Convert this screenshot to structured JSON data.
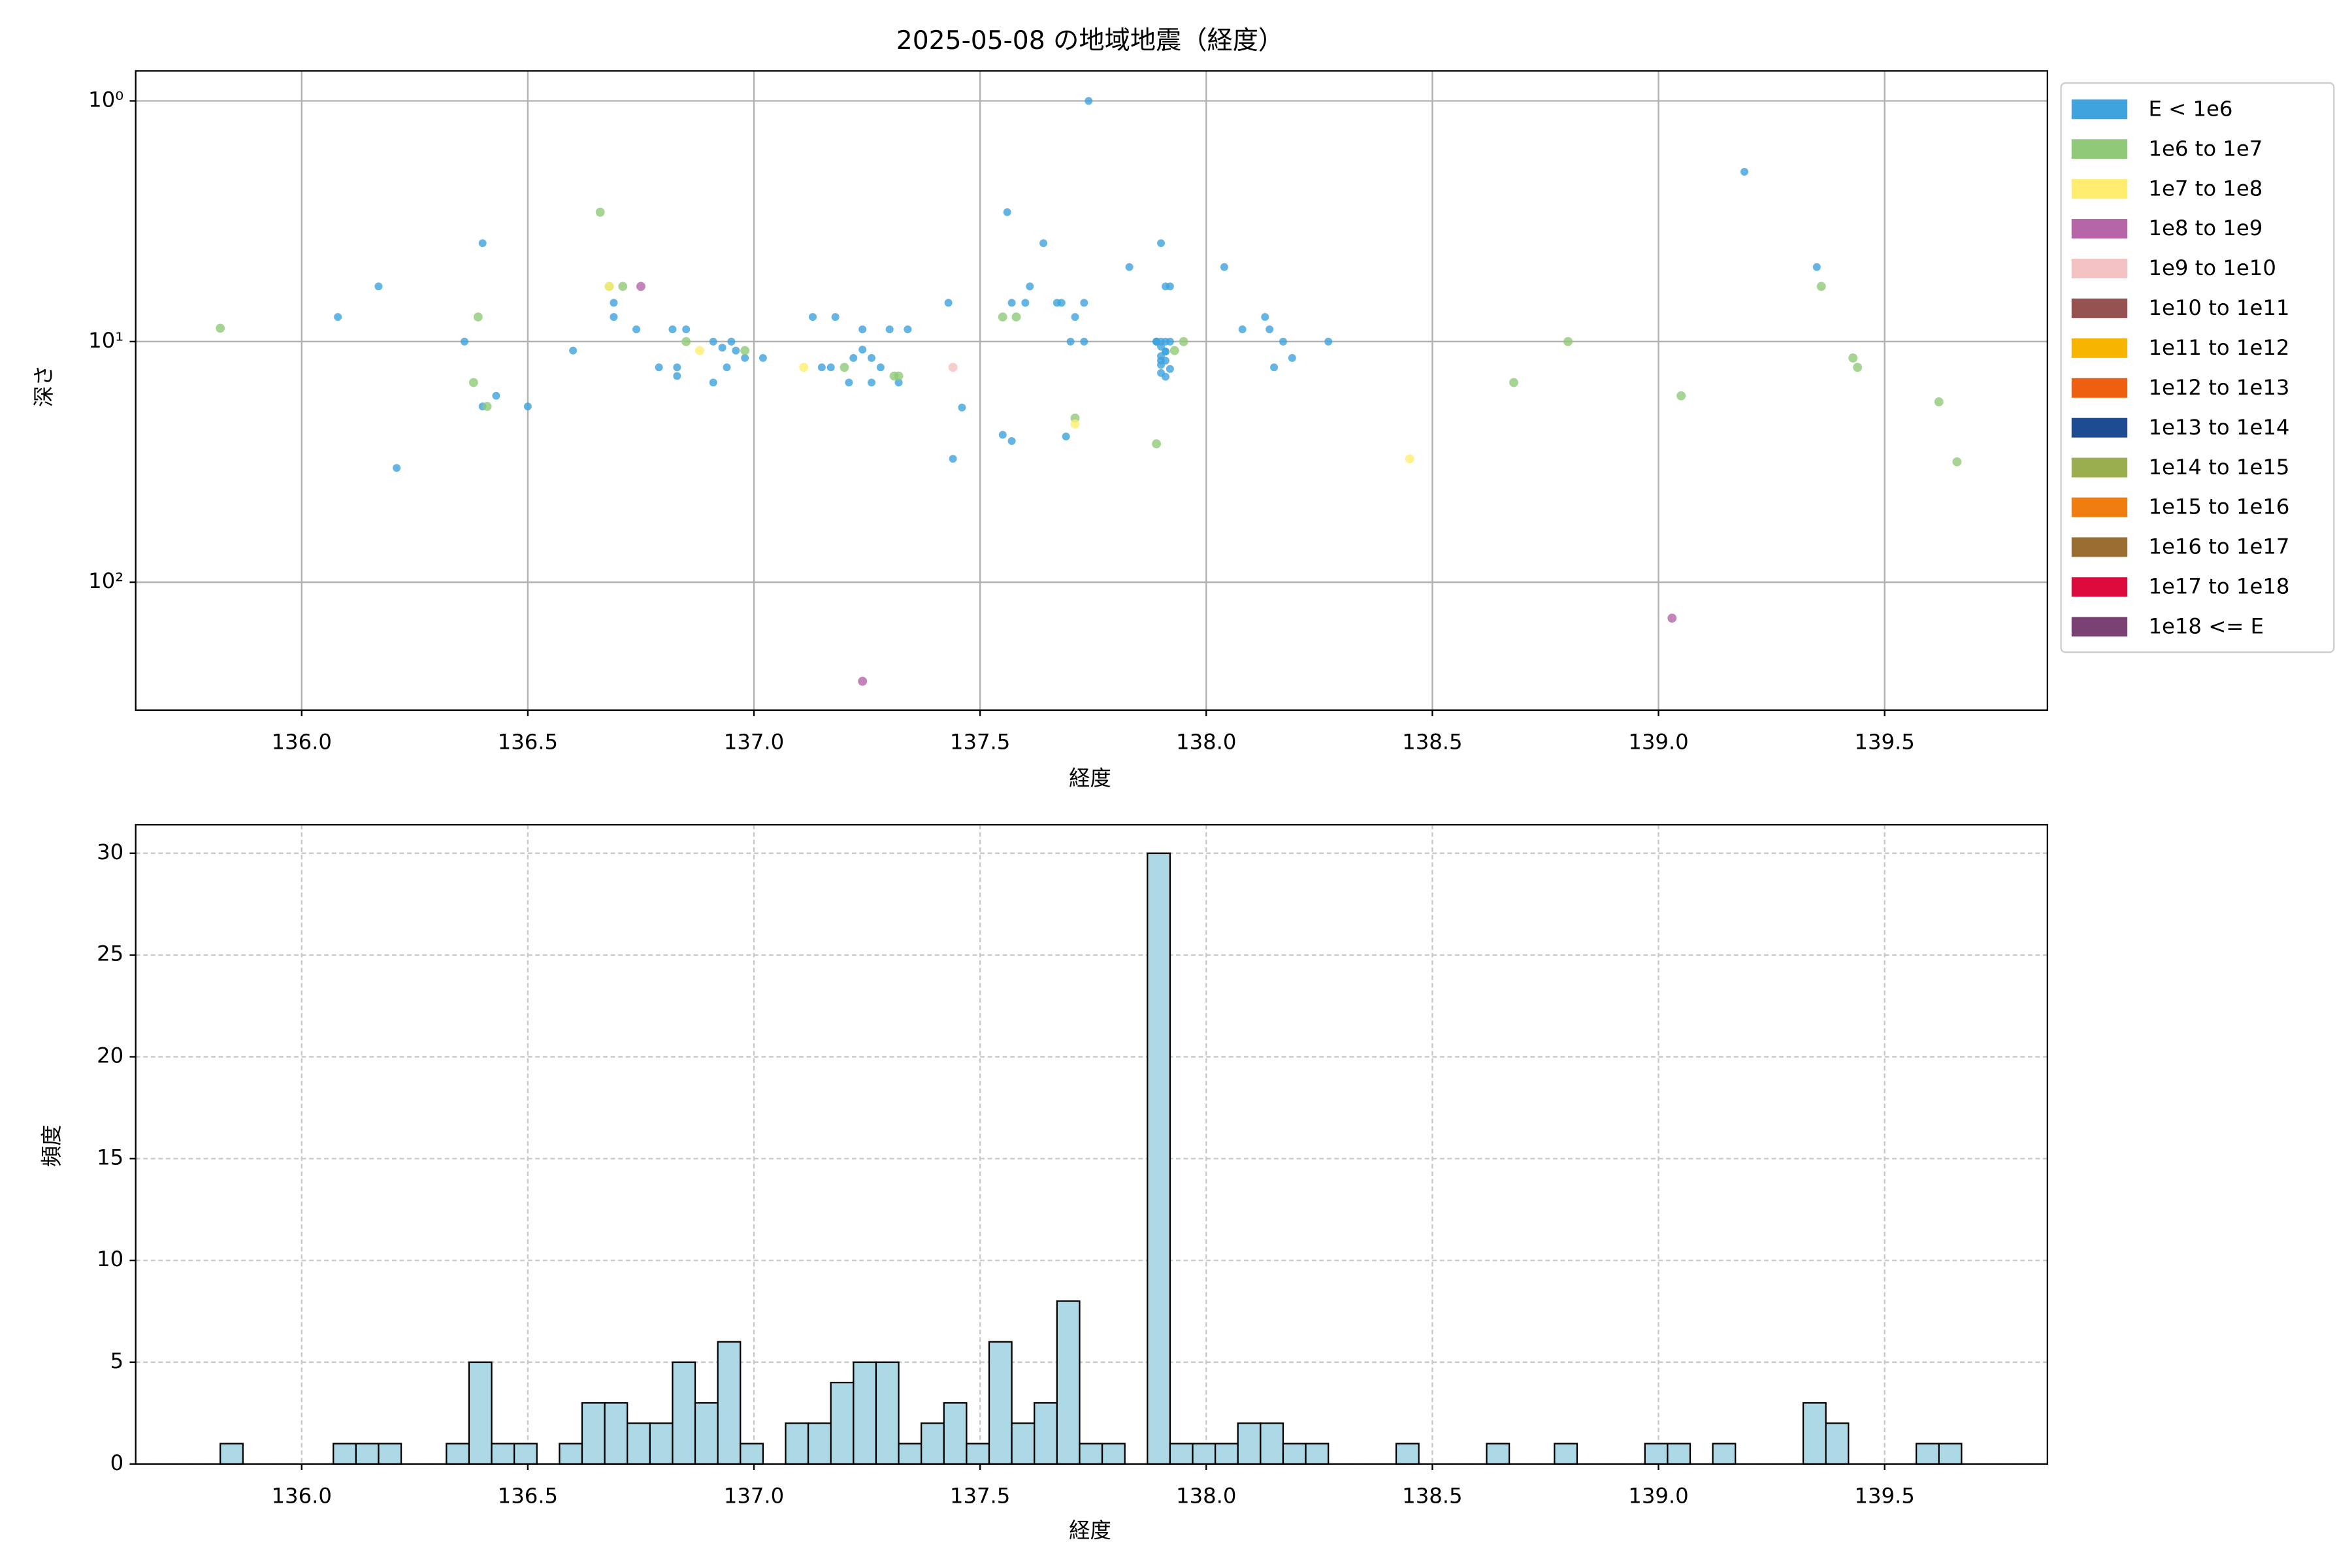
{
  "chart_data": [
    {
      "type": "scatter",
      "title": "2025-05-08 の地域地震（経度）",
      "xlabel": "経度",
      "ylabel": "深さ",
      "xlim": [
        135.633,
        139.86
      ],
      "ylim": [
        0.75,
        340
      ],
      "log_y": true,
      "y_inverted": true,
      "grid": true,
      "legend": "outside upper right",
      "xticks": [
        {
          "value": 136,
          "label": "136.0"
        },
        {
          "value": 136.5,
          "label": "136.5"
        },
        {
          "value": 137,
          "label": "137.0"
        },
        {
          "value": 137.5,
          "label": "137.5"
        },
        {
          "value": 138,
          "label": "138.0"
        },
        {
          "value": 138.5,
          "label": "138.5"
        },
        {
          "value": 139,
          "label": "139.0"
        },
        {
          "value": 139.5,
          "label": "139.5"
        }
      ],
      "yticks": [
        {
          "value": 1,
          "label": "10⁰"
        },
        {
          "value": 10,
          "label": "10¹"
        },
        {
          "value": 100,
          "label": "10²"
        }
      ],
      "series": [
        {
          "name": "E < 1e6",
          "color": "#3fa3dd",
          "x": [
            136.08,
            136.17,
            136.21,
            136.36,
            136.4,
            136.4,
            136.43,
            136.5,
            136.6,
            136.69,
            136.69,
            136.74,
            136.79,
            136.82,
            136.83,
            136.83,
            136.85,
            136.91,
            136.91,
            136.93,
            136.94,
            136.95,
            136.96,
            136.98,
            137.02,
            137.13,
            137.15,
            137.17,
            137.18,
            137.21,
            137.22,
            137.24,
            137.24,
            137.26,
            137.26,
            137.28,
            137.3,
            137.32,
            137.34,
            137.43,
            137.44,
            137.46,
            137.55,
            137.56,
            137.57,
            137.57,
            137.6,
            137.61,
            137.64,
            137.67,
            137.68,
            137.69,
            137.7,
            137.71,
            137.73,
            137.73,
            137.74,
            137.83,
            137.9,
            137.91,
            137.92,
            137.89,
            137.9,
            137.9,
            137.91,
            137.91,
            137.92,
            137.9,
            137.89,
            137.91,
            137.9,
            137.92,
            137.91,
            137.9,
            137.89,
            137.91,
            137.9,
            138.04,
            138.08,
            138.13,
            138.14,
            138.15,
            138.17,
            138.19,
            138.27,
            139.19,
            139.35
          ],
          "values": [
            7.9,
            5.9,
            33.5,
            10,
            3.9,
            18.6,
            16.8,
            18.6,
            10.9,
            7.9,
            6.9,
            8.9,
            12.8,
            8.9,
            12.8,
            13.9,
            8.9,
            14.8,
            10,
            10.6,
            12.8,
            10,
            10.9,
            11.7,
            11.7,
            7.9,
            12.8,
            12.8,
            7.9,
            14.8,
            11.7,
            8.9,
            10.8,
            11.7,
            14.8,
            12.8,
            8.9,
            14.8,
            8.9,
            6.9,
            30.7,
            18.8,
            24.4,
            2.9,
            25.9,
            6.9,
            6.9,
            5.9,
            3.9,
            6.9,
            6.9,
            24.8,
            10,
            7.9,
            6.9,
            10,
            1,
            4.9,
            3.9,
            5.9,
            5.9,
            10,
            10,
            10.5,
            11,
            12,
            13,
            11.5,
            10,
            10,
            12.5,
            10,
            11,
            13.5,
            10,
            14,
            12,
            4.9,
            8.9,
            7.9,
            8.9,
            12.8,
            10,
            11.7,
            10,
            1.97,
            4.9
          ]
        },
        {
          "name": "1e6 to 1e7",
          "color": "#90c978",
          "x": [
            135.82,
            136.38,
            136.39,
            136.41,
            136.66,
            136.68,
            136.71,
            136.85,
            136.98,
            137.2,
            137.31,
            137.32,
            137.55,
            137.58,
            137.71,
            137.89,
            137.93,
            137.95,
            138.68,
            138.8,
            139.05,
            139.36,
            139.43,
            139.44,
            139.62,
            139.66
          ],
          "values": [
            8.8,
            14.8,
            7.9,
            18.6,
            2.9,
            5.9,
            5.9,
            10,
            10.9,
            12.8,
            13.9,
            13.9,
            7.9,
            7.9,
            20.8,
            26.6,
            10.9,
            10,
            14.8,
            10,
            16.8,
            5.9,
            11.7,
            12.8,
            17.8,
            31.6
          ]
        },
        {
          "name": "1e7 to 1e8",
          "color": "#ffed6f",
          "x": [
            136.68,
            136.88,
            137.11,
            137.71,
            138.45
          ],
          "values": [
            5.9,
            10.9,
            12.8,
            22,
            30.7
          ]
        },
        {
          "name": "1e8 to 1e9",
          "color": "#b565a7",
          "x": [
            136.75,
            137.24,
            139.03
          ],
          "values": [
            5.9,
            258,
            141
          ]
        },
        {
          "name": "1e9 to 1e10",
          "color": "#f4c2c2",
          "x": [
            137.44
          ],
          "values": [
            12.8
          ]
        },
        {
          "name": "1e10 to 1e11",
          "color": "#955251",
          "x": [],
          "values": []
        },
        {
          "name": "1e11 to 1e12",
          "color": "#f7b500",
          "x": [],
          "values": []
        },
        {
          "name": "1e12 to 1e13",
          "color": "#ee6010",
          "x": [],
          "values": []
        },
        {
          "name": "1e13 to 1e14",
          "color": "#1e4c92",
          "x": [],
          "values": []
        },
        {
          "name": "1e14 to 1e15",
          "color": "#9aad4f",
          "x": [],
          "values": []
        },
        {
          "name": "1e15 to 1e16",
          "color": "#ef7d10",
          "x": [],
          "values": []
        },
        {
          "name": "1e16 to 1e17",
          "color": "#9a6e30",
          "x": [],
          "values": []
        },
        {
          "name": "1e17 to 1e18",
          "color": "#dc0a3c",
          "x": [],
          "values": []
        },
        {
          "name": "1e18 <= E",
          "color": "#7b4173",
          "x": [],
          "values": []
        }
      ]
    },
    {
      "type": "histogram",
      "xlabel": "経度",
      "ylabel": "頻度",
      "color": "#add8e6",
      "edgecolor": "#000000",
      "grid": "dashed",
      "xlim": [
        135.633,
        139.86
      ],
      "ylim": [
        0,
        31.4
      ],
      "xticks": [
        {
          "value": 136,
          "label": "136.0"
        },
        {
          "value": 136.5,
          "label": "136.5"
        },
        {
          "value": 137,
          "label": "137.0"
        },
        {
          "value": 137.5,
          "label": "137.5"
        },
        {
          "value": 138,
          "label": "138.0"
        },
        {
          "value": 138.5,
          "label": "138.5"
        },
        {
          "value": 139,
          "label": "139.0"
        },
        {
          "value": 139.5,
          "label": "139.5"
        }
      ],
      "yticks": [
        0,
        5,
        10,
        15,
        20,
        25,
        30
      ],
      "bins": [
        135.82,
        135.87,
        135.92,
        135.97,
        136.02,
        136.07,
        136.12,
        136.17,
        136.22,
        136.27,
        136.32,
        136.37,
        136.42,
        136.47,
        136.52,
        136.57,
        136.62,
        136.67,
        136.72,
        136.77,
        136.82,
        136.87,
        136.92,
        136.97,
        137.02,
        137.07,
        137.12,
        137.17,
        137.22,
        137.27,
        137.32,
        137.37,
        137.42,
        137.47,
        137.52,
        137.57,
        137.62,
        137.67,
        137.72,
        137.77,
        137.82,
        137.87,
        137.92,
        137.97,
        138.02,
        138.07,
        138.12,
        138.17,
        138.22,
        138.27,
        138.32,
        138.37,
        138.42,
        138.47,
        138.52,
        138.57,
        138.62,
        138.67,
        138.72,
        138.77,
        138.82,
        138.87,
        138.92,
        138.97,
        139.02,
        139.07,
        139.12,
        139.17,
        139.22,
        139.27,
        139.32,
        139.37,
        139.42,
        139.47,
        139.52,
        139.57,
        139.62,
        139.67
      ],
      "counts": [
        1,
        0,
        0,
        0,
        0,
        1,
        1,
        1,
        0,
        0,
        1,
        5,
        1,
        1,
        0,
        1,
        3,
        3,
        2,
        2,
        5,
        3,
        6,
        1,
        0,
        2,
        2,
        4,
        5,
        5,
        1,
        2,
        3,
        1,
        6,
        2,
        3,
        8,
        1,
        1,
        0,
        30,
        1,
        1,
        1,
        2,
        2,
        1,
        1,
        0,
        0,
        0,
        1,
        0,
        0,
        0,
        1,
        0,
        0,
        1,
        0,
        0,
        0,
        1,
        1,
        0,
        1,
        0,
        0,
        0,
        3,
        2,
        0,
        0,
        0,
        1,
        1
      ]
    }
  ]
}
